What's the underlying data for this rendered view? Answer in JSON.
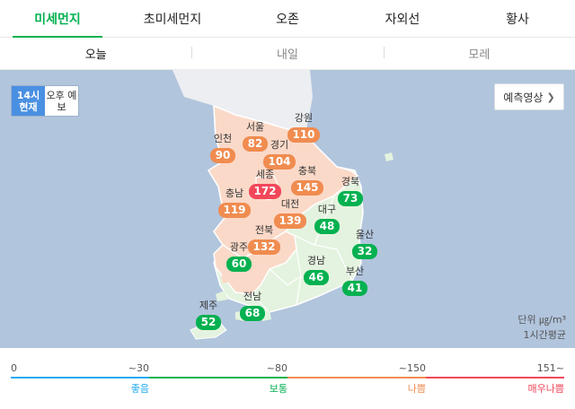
{
  "tabs": [
    {
      "label": "미세먼지",
      "active": true
    },
    {
      "label": "초미세먼지"
    },
    {
      "label": "오존"
    },
    {
      "label": "자외선"
    },
    {
      "label": "황사"
    }
  ],
  "days": [
    {
      "label": "오늘",
      "active": true
    },
    {
      "label": "내일"
    },
    {
      "label": "모레"
    }
  ],
  "time_toggle": {
    "now": "14시 현재",
    "forecast": "오후 예보"
  },
  "forecast_button": {
    "label": "예측영상",
    "icon": "chevron-right-icon"
  },
  "colors": {
    "good": "#1eaaf1",
    "normal": "#03b150",
    "bad": "#f08c50",
    "very_bad": "#f2475a",
    "land_normal": "#e4f3df",
    "land_bad": "#fbd9c8",
    "sea": "#b1c5dd"
  },
  "regions": [
    {
      "name": "서울",
      "value": "82",
      "level": "bad"
    },
    {
      "name": "강원",
      "value": "110",
      "level": "bad"
    },
    {
      "name": "인천",
      "value": "90",
      "level": "bad"
    },
    {
      "name": "경기",
      "value": "104",
      "level": "bad"
    },
    {
      "name": "세종",
      "value": "172",
      "level": "very_bad"
    },
    {
      "name": "충북",
      "value": "145",
      "level": "bad"
    },
    {
      "name": "충남",
      "value": "119",
      "level": "bad"
    },
    {
      "name": "경북",
      "value": "73",
      "level": "normal"
    },
    {
      "name": "대전",
      "value": "139",
      "level": "bad"
    },
    {
      "name": "대구",
      "value": "48",
      "level": "normal"
    },
    {
      "name": "전북",
      "value": "132",
      "level": "bad"
    },
    {
      "name": "울산",
      "value": "32",
      "level": "normal"
    },
    {
      "name": "광주",
      "value": "60",
      "level": "normal"
    },
    {
      "name": "경남",
      "value": "46",
      "level": "normal"
    },
    {
      "name": "부산",
      "value": "41",
      "level": "normal"
    },
    {
      "name": "전남",
      "value": "68",
      "level": "normal"
    },
    {
      "name": "제주",
      "value": "52",
      "level": "normal"
    }
  ],
  "unit": {
    "line1": "단위 ㎍/m³",
    "line2": "1시간평균"
  },
  "legend": {
    "start": "0",
    "segments": [
      {
        "tick": "~30",
        "label": "좋음",
        "level": "good"
      },
      {
        "tick": "~80",
        "label": "보통",
        "level": "normal"
      },
      {
        "tick": "~150",
        "label": "나쁨",
        "level": "bad"
      },
      {
        "tick": "151~",
        "label": "매우나쁨",
        "level": "very_bad"
      }
    ]
  }
}
